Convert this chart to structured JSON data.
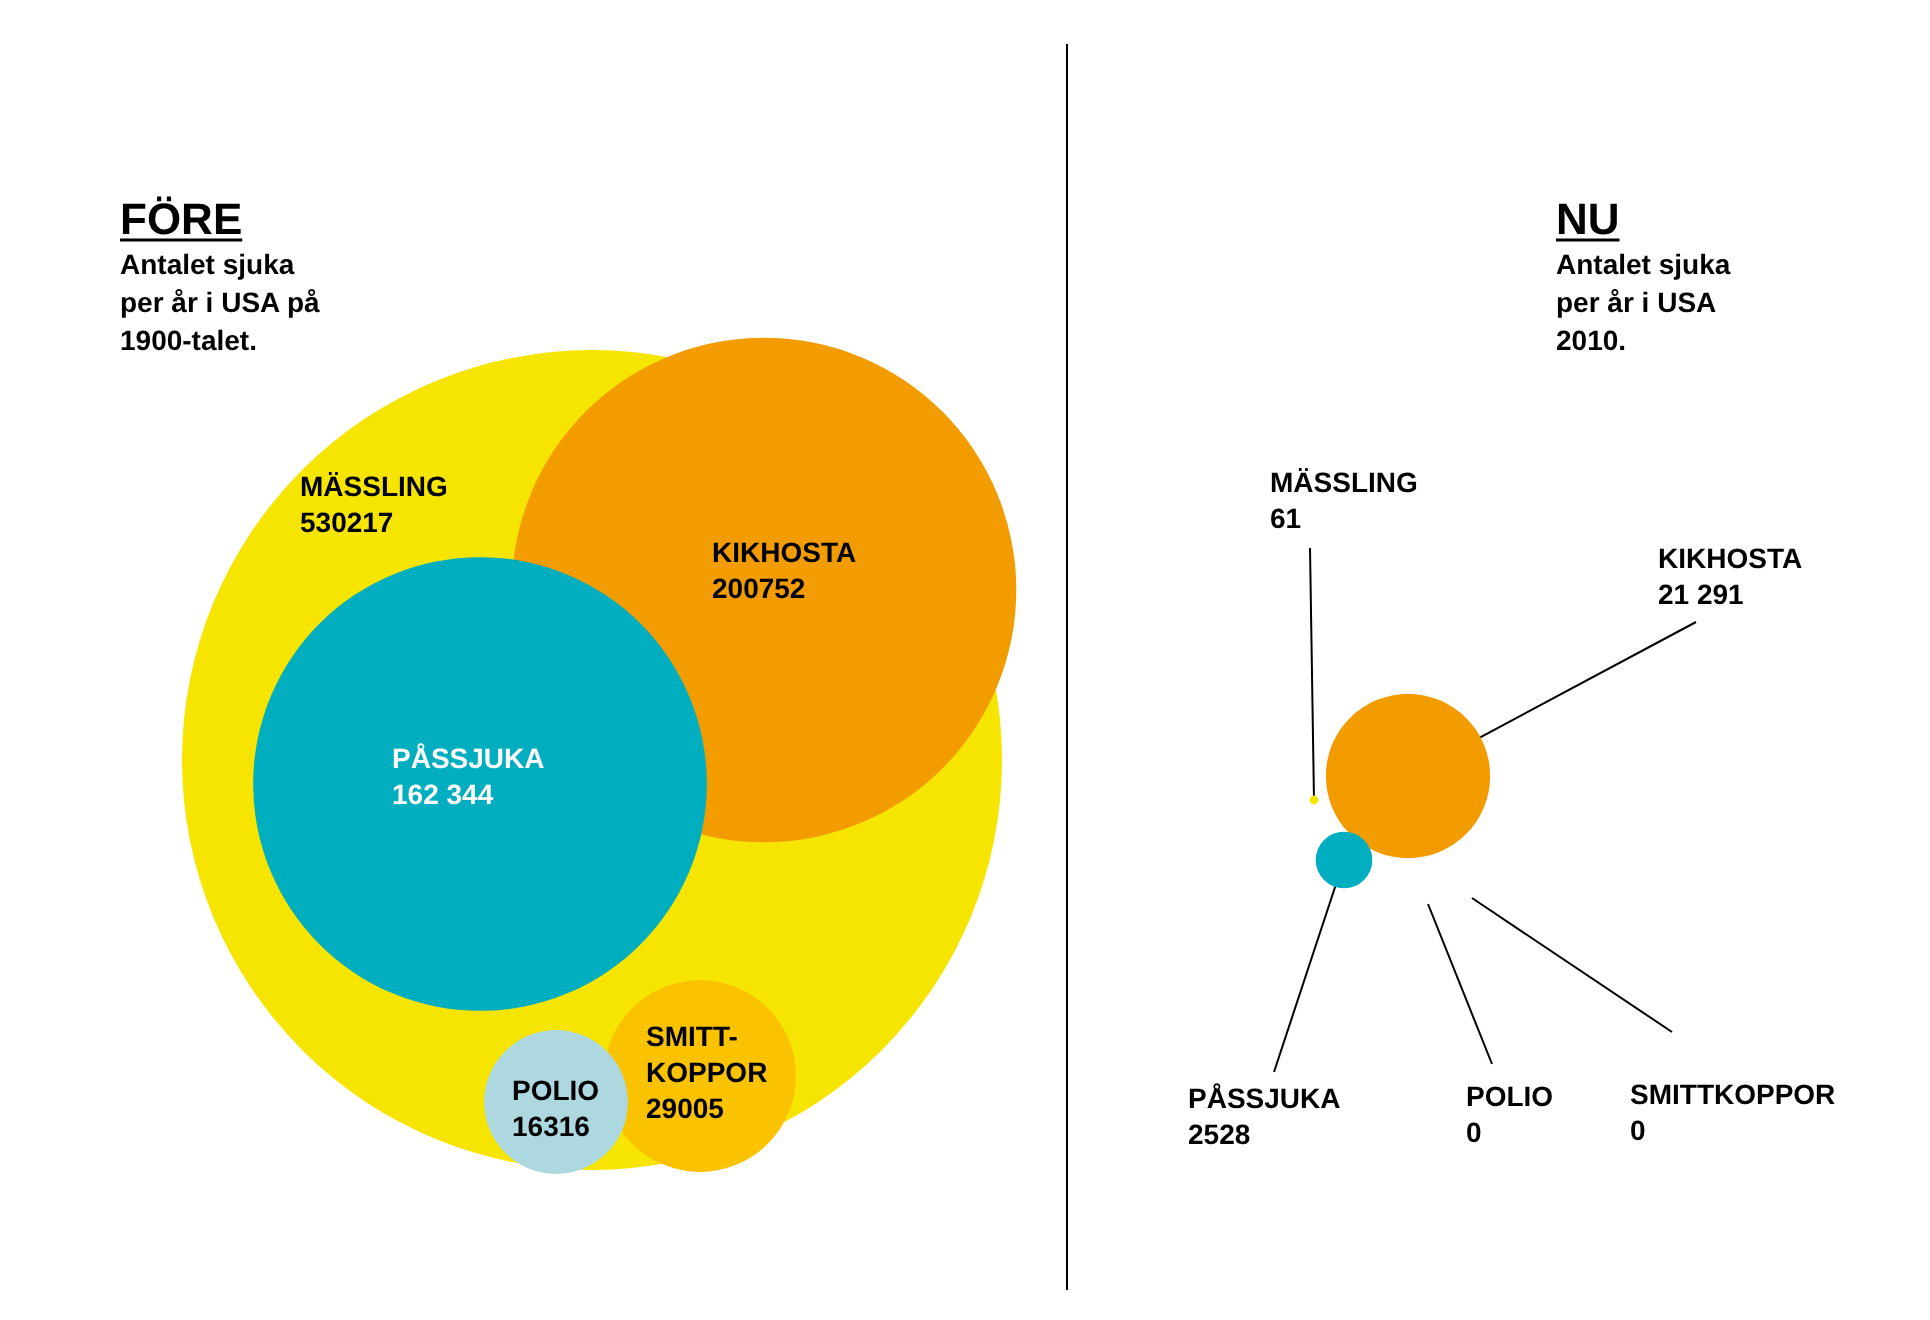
{
  "chart_data": [
    {
      "type": "other",
      "title": "FÖRE",
      "subtitle": "Antalet sjuka per år i USA på 1900-talet.",
      "categories": [
        "MÄSSLING",
        "KIKHOSTA",
        "PÅSSJUKA",
        "POLIO",
        "SMITT-KOPPOR"
      ],
      "values": [
        530217,
        200752,
        162344,
        16316,
        29005
      ],
      "value_labels": [
        "530217",
        "200752",
        "162 344",
        "16316",
        "29005"
      ],
      "colors": [
        "#f6e500",
        "#f39c00",
        "#00aec0",
        "#add8e0",
        "#fbc200"
      ]
    },
    {
      "type": "other",
      "title": "NU",
      "subtitle": "Antalet sjuka per år i USA 2010.",
      "categories": [
        "MÄSSLING",
        "KIKHOSTA",
        "PÅSSJUKA",
        "POLIO",
        "SMITTKOPPOR"
      ],
      "values": [
        61,
        21291,
        2528,
        0,
        0
      ],
      "value_labels": [
        "61",
        "21 291",
        "2528",
        "0",
        "0"
      ],
      "colors": [
        "#f6e500",
        "#f39c00",
        "#00aec0",
        null,
        null
      ]
    }
  ]
}
